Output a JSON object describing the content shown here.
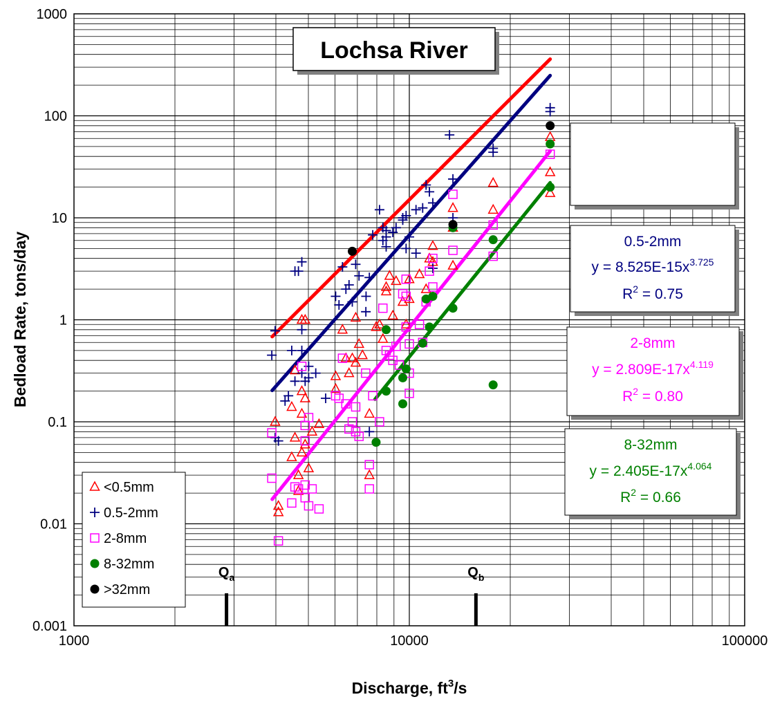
{
  "chart_data": {
    "type": "scatter",
    "title": "Lochsa River",
    "xlabel": {
      "main": "Discharge, ft",
      "sup": "3",
      "tail": "/s"
    },
    "ylabel": "Bedload Rate, tons/day",
    "x_scale": "log",
    "y_scale": "log",
    "xlim": [
      1000,
      100000
    ],
    "ylim": [
      0.001,
      1000
    ],
    "x_ticks": [
      "1000",
      "10000",
      "100000"
    ],
    "y_ticks": [
      "0.001",
      "0.01",
      "0.1",
      "1",
      "10",
      "100",
      "1000"
    ],
    "grid": true,
    "legend_position": "bottom-left",
    "series": [
      {
        "name": "<0.5mm",
        "marker": "triangle",
        "color": "#ff0000",
        "points": [
          [
            3980,
            0.1
          ],
          [
            4070,
            0.015
          ],
          [
            4070,
            0.013
          ],
          [
            4460,
            0.14
          ],
          [
            4460,
            0.045
          ],
          [
            4560,
            0.32
          ],
          [
            4560,
            0.07
          ],
          [
            4670,
            0.03
          ],
          [
            4670,
            0.021
          ],
          [
            4780,
            1.0
          ],
          [
            4780,
            0.2
          ],
          [
            4780,
            0.12
          ],
          [
            4780,
            0.05
          ],
          [
            4890,
            1.0
          ],
          [
            4890,
            0.17
          ],
          [
            4890,
            0.06
          ],
          [
            5010,
            0.035
          ],
          [
            5130,
            0.08
          ],
          [
            5380,
            0.095
          ],
          [
            6030,
            0.21
          ],
          [
            6030,
            0.28
          ],
          [
            6320,
            0.8
          ],
          [
            6470,
            0.42
          ],
          [
            6610,
            0.3
          ],
          [
            6760,
            0.42
          ],
          [
            6920,
            1.05
          ],
          [
            6920,
            0.38
          ],
          [
            7080,
            0.58
          ],
          [
            7250,
            0.45
          ],
          [
            7600,
            0.12
          ],
          [
            7600,
            0.03
          ],
          [
            7960,
            0.85
          ],
          [
            8150,
            0.9
          ],
          [
            8340,
            0.65
          ],
          [
            8530,
            1.9
          ],
          [
            8530,
            2.1
          ],
          [
            8730,
            2.7
          ],
          [
            8930,
            1.1
          ],
          [
            9130,
            2.4
          ],
          [
            9560,
            1.5
          ],
          [
            9780,
            0.9
          ],
          [
            10000,
            1.6
          ],
          [
            10000,
            2.5
          ],
          [
            10720,
            2.8
          ],
          [
            11220,
            2.0
          ],
          [
            11480,
            4.0
          ],
          [
            11750,
            5.3
          ],
          [
            11750,
            3.7
          ],
          [
            13490,
            12.5
          ],
          [
            13490,
            3.4
          ],
          [
            13490,
            8.0
          ],
          [
            17780,
            22
          ],
          [
            17780,
            12
          ],
          [
            26300,
            62
          ],
          [
            26300,
            28
          ],
          [
            26300,
            17.5
          ]
        ]
      },
      {
        "name": "0.5-2mm",
        "marker": "plus",
        "color": "#000080",
        "points": [
          [
            3890,
            0.45
          ],
          [
            3980,
            0.78
          ],
          [
            3980,
            0.07
          ],
          [
            4070,
            0.065
          ],
          [
            4260,
            0.16
          ],
          [
            4360,
            0.18
          ],
          [
            4460,
            0.5
          ],
          [
            4560,
            3.0
          ],
          [
            4560,
            0.25
          ],
          [
            4670,
            3.0
          ],
          [
            4780,
            3.7
          ],
          [
            4780,
            0.8
          ],
          [
            4780,
            0.5
          ],
          [
            4780,
            0.3
          ],
          [
            4890,
            0.25
          ],
          [
            5010,
            0.27
          ],
          [
            5010,
            0.35
          ],
          [
            5260,
            0.3
          ],
          [
            5630,
            0.17
          ],
          [
            6030,
            1.7
          ],
          [
            6170,
            1.4
          ],
          [
            6320,
            3.3
          ],
          [
            6470,
            2.0
          ],
          [
            6610,
            2.2
          ],
          [
            6760,
            1.5
          ],
          [
            6920,
            3.5
          ],
          [
            7080,
            2.7
          ],
          [
            7420,
            1.2
          ],
          [
            7600,
            2.6
          ],
          [
            7780,
            6.8
          ],
          [
            8150,
            12
          ],
          [
            8340,
            8.0
          ],
          [
            8340,
            6.0
          ],
          [
            8530,
            6.5
          ],
          [
            8530,
            7.5
          ],
          [
            8530,
            5.2
          ],
          [
            8930,
            7.2
          ],
          [
            9130,
            8.0
          ],
          [
            9560,
            10
          ],
          [
            9560,
            9.5
          ],
          [
            10000,
            6.5
          ],
          [
            10470,
            12
          ],
          [
            10470,
            4.5
          ],
          [
            10960,
            12.5
          ],
          [
            11220,
            21
          ],
          [
            11480,
            18
          ],
          [
            11750,
            14
          ],
          [
            13180,
            65
          ],
          [
            13490,
            24
          ],
          [
            13490,
            10
          ],
          [
            17780,
            48
          ],
          [
            17780,
            44
          ],
          [
            26300,
            120
          ],
          [
            26300,
            110
          ],
          [
            7600,
            0.08
          ],
          [
            7430,
            1.7
          ],
          [
            9780,
            10.5
          ],
          [
            9780,
            5.0
          ],
          [
            11750,
            3.2
          ]
        ]
      },
      {
        "name": "2-8mm",
        "marker": "square",
        "color": "#ff00ff",
        "points": [
          [
            3890,
            0.078
          ],
          [
            3890,
            0.028
          ],
          [
            4070,
            0.0068
          ],
          [
            4460,
            0.016
          ],
          [
            4560,
            0.023
          ],
          [
            4670,
            0.022
          ],
          [
            4780,
            0.35
          ],
          [
            4890,
            0.018
          ],
          [
            4890,
            0.092
          ],
          [
            4890,
            0.065
          ],
          [
            4890,
            0.024
          ],
          [
            5010,
            0.11
          ],
          [
            5010,
            0.015
          ],
          [
            5130,
            0.022
          ],
          [
            5380,
            0.014
          ],
          [
            6030,
            0.18
          ],
          [
            6170,
            0.17
          ],
          [
            6320,
            0.42
          ],
          [
            6470,
            0.15
          ],
          [
            6610,
            0.085
          ],
          [
            6760,
            0.1
          ],
          [
            6920,
            0.14
          ],
          [
            6920,
            0.08
          ],
          [
            7080,
            0.072
          ],
          [
            7410,
            0.3
          ],
          [
            7600,
            0.038
          ],
          [
            7600,
            0.022
          ],
          [
            7780,
            0.18
          ],
          [
            8150,
            0.1
          ],
          [
            8340,
            1.3
          ],
          [
            8530,
            0.5
          ],
          [
            8730,
            0.45
          ],
          [
            8930,
            0.4
          ],
          [
            9130,
            0.55
          ],
          [
            9340,
            0.36
          ],
          [
            9560,
            1.8
          ],
          [
            9780,
            2.5
          ],
          [
            9780,
            1.7
          ],
          [
            9780,
            0.85
          ],
          [
            10000,
            0.58
          ],
          [
            10000,
            0.3
          ],
          [
            10000,
            0.19
          ],
          [
            10720,
            0.9
          ],
          [
            10960,
            0.6
          ],
          [
            11220,
            1.5
          ],
          [
            11480,
            3.0
          ],
          [
            11750,
            2.1
          ],
          [
            11750,
            4.0
          ],
          [
            13490,
            4.8
          ],
          [
            13490,
            17
          ],
          [
            17780,
            8.5
          ],
          [
            17780,
            4.2
          ],
          [
            26300,
            42
          ]
        ]
      },
      {
        "name": "8-32mm",
        "marker": "filled-circle",
        "color": "#008000",
        "points": [
          [
            7960,
            0.063
          ],
          [
            8530,
            0.8
          ],
          [
            8530,
            0.2
          ],
          [
            9560,
            0.15
          ],
          [
            9560,
            0.27
          ],
          [
            9780,
            0.33
          ],
          [
            10960,
            0.59
          ],
          [
            11220,
            1.6
          ],
          [
            11480,
            0.85
          ],
          [
            11750,
            1.7
          ],
          [
            13490,
            1.3
          ],
          [
            13490,
            8.0
          ],
          [
            17780,
            6.1
          ],
          [
            17780,
            0.23
          ],
          [
            26300,
            20
          ],
          [
            26300,
            53
          ]
        ]
      },
      {
        "name": ">32mm",
        "marker": "filled-circle",
        "color": "#000000",
        "points": [
          [
            6760,
            4.7
          ],
          [
            13490,
            8.6
          ],
          [
            26300,
            80
          ]
        ]
      }
    ],
    "fits": [
      {
        "series": "0.5-2mm",
        "color": "#000080",
        "a": 8.525e-15,
        "b": 3.725,
        "x_range": [
          3900,
          26300
        ]
      },
      {
        "series": "<0.5mm",
        "color": "#ff0000",
        "a": 1.11e-12,
        "b": 3.283,
        "x_range": [
          3900,
          26300
        ]
      },
      {
        "series": "2-8mm",
        "color": "#ff00ff",
        "a": 2.809e-17,
        "b": 4.119,
        "x_range": [
          3900,
          26300
        ]
      },
      {
        "series": "8-32mm",
        "color": "#008000",
        "a": 2.405e-17,
        "b": 4.064,
        "x_range": [
          7900,
          26300
        ]
      }
    ],
    "equation_boxes": [
      {
        "series": "0.5-2mm",
        "color": "#000080",
        "name": "0.5-2mm",
        "eq_main": "y = 8.525E-15x",
        "eq_exp": "3.725",
        "r2_label": "R",
        "r2_exp": "2",
        "r2_value": " = 0.75"
      },
      {
        "series": "2-8mm",
        "color": "#ff00ff",
        "name": "2-8mm",
        "eq_main": "y = 2.809E-17x",
        "eq_exp": "4.119",
        "r2_label": "R",
        "r2_exp": "2",
        "r2_value": " = 0.80"
      },
      {
        "series": "8-32mm",
        "color": "#008000",
        "name": "8-32mm",
        "eq_main": "y = 2.405E-17x",
        "eq_exp": "4.064",
        "r2_label": "R",
        "r2_exp": "2",
        "r2_value": " = 0.66"
      }
    ],
    "markers_q": [
      {
        "label": "Q",
        "sub": "a",
        "x": 2850
      },
      {
        "label": "Q",
        "sub": "b",
        "x": 15800
      }
    ]
  }
}
